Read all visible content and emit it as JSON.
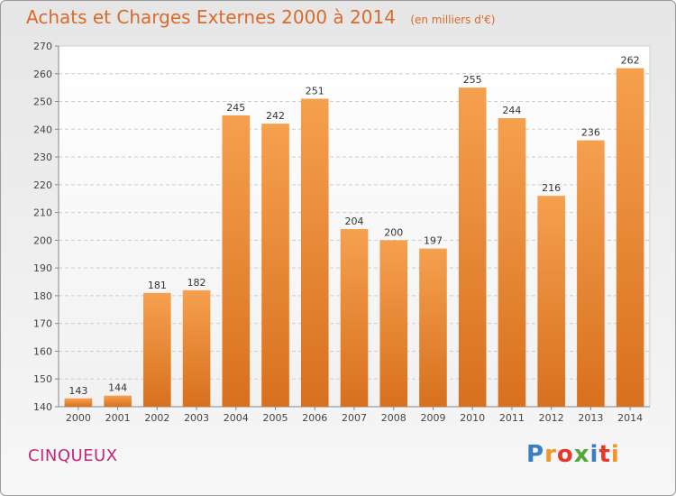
{
  "chart_data": {
    "type": "bar",
    "title": "Achats et Charges Externes 2000 à 2014",
    "subtitle": "(en milliers d'€)",
    "categories": [
      "2000",
      "2001",
      "2002",
      "2003",
      "2004",
      "2005",
      "2006",
      "2007",
      "2008",
      "2009",
      "2010",
      "2011",
      "2012",
      "2013",
      "2014"
    ],
    "values": [
      143,
      144,
      181,
      182,
      245,
      242,
      251,
      204,
      200,
      197,
      255,
      244,
      216,
      236,
      262
    ],
    "ylim": [
      140,
      270
    ],
    "yticks": [
      140,
      150,
      160,
      170,
      180,
      190,
      200,
      210,
      220,
      230,
      240,
      250,
      260,
      270
    ],
    "grid": true,
    "legend": "none",
    "bar_color": "#f08a30"
  },
  "footer": {
    "commune": "CINQUEUX",
    "logo": "Proxiti",
    "logo_colors": [
      "#3a7fc1",
      "#f0952a",
      "#e5392b",
      "#55a537",
      "#3a7fc1",
      "#e5392b",
      "#f0952a"
    ]
  }
}
